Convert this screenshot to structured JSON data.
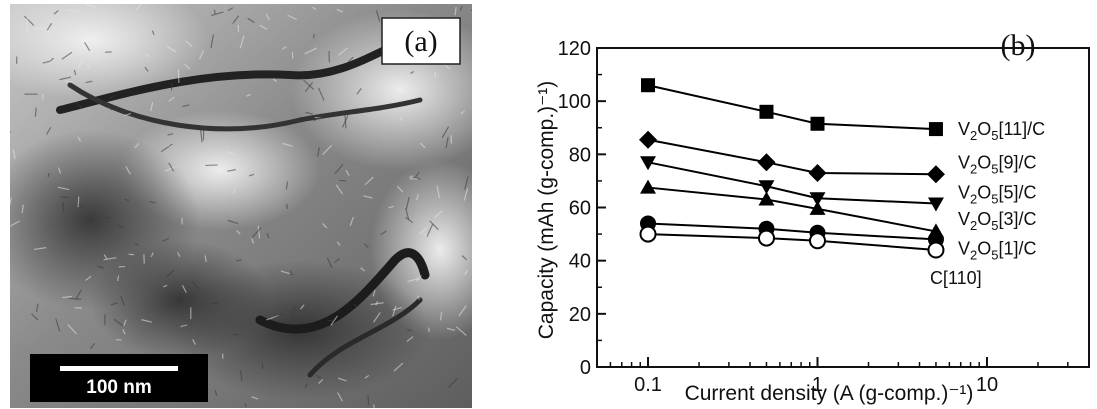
{
  "panel_a": {
    "label": "(a)",
    "scale_bar_label": "100 nm"
  },
  "chart_data": {
    "type": "line",
    "panel_label": "(b)",
    "xlabel": "Current density (A (g-comp.)⁻¹)",
    "ylabel": "Capacity (mAh (g-comp.)⁻¹)",
    "xscale": "log",
    "xlim": [
      0.05,
      40
    ],
    "ylim": [
      0,
      120
    ],
    "x_ticks": [
      0.1,
      1,
      10
    ],
    "x_tick_labels": [
      "0.1",
      "1",
      "10"
    ],
    "y_ticks": [
      0,
      20,
      40,
      60,
      80,
      100,
      120
    ],
    "y_tick_labels": [
      "0",
      "20",
      "40",
      "60",
      "80",
      "100",
      "120"
    ],
    "x": [
      0.1,
      0.5,
      1,
      5
    ],
    "series": [
      {
        "name": "V2O5[11]/C",
        "marker": "square",
        "values": [
          106,
          96,
          91.5,
          89.5
        ]
      },
      {
        "name": "V2O5[9]/C",
        "marker": "diamond",
        "values": [
          85.5,
          77,
          73,
          72.5
        ]
      },
      {
        "name": "V2O5[5]/C",
        "marker": "triangle-down",
        "values": [
          77,
          68,
          63.5,
          61.5
        ]
      },
      {
        "name": "V2O5[3]/C",
        "marker": "triangle-up",
        "values": [
          67.5,
          63,
          59.5,
          51
        ]
      },
      {
        "name": "V2O5[1]/C",
        "marker": "circle",
        "values": [
          54,
          52,
          50.5,
          48
        ]
      },
      {
        "name": "C[110]",
        "marker": "circle-open",
        "values": [
          50,
          48.5,
          47.5,
          44
        ]
      }
    ],
    "legend_placement": "right of line ends",
    "grid": false
  }
}
